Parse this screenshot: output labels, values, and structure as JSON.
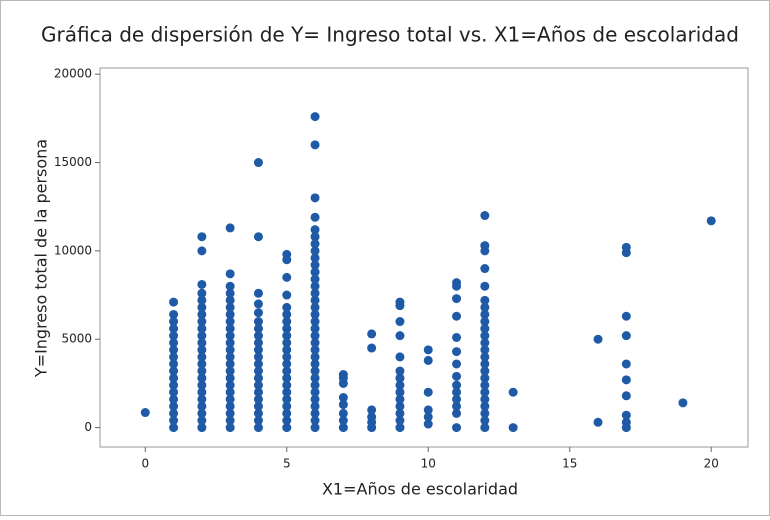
{
  "chart_data": {
    "type": "scatter",
    "title": "Gráfica de dispersión de Y= Ingreso total vs. X1=Años de escolaridad",
    "xlabel": "X1=Años de escolaridad",
    "ylabel": "Y=Ingreso total de la persona",
    "color": "#1f5aa6",
    "xlim": [
      -1.6,
      21.3
    ],
    "ylim": [
      -1100,
      20350
    ],
    "xticks": [
      0,
      5,
      10,
      15,
      20
    ],
    "yticks": [
      0,
      5000,
      10000,
      15000,
      20000
    ],
    "grid": false,
    "x": [
      0,
      1,
      1,
      1,
      1,
      1,
      1,
      1,
      1,
      1,
      1,
      1,
      1,
      1,
      1,
      1,
      1,
      1,
      1,
      2,
      2,
      2,
      2,
      2,
      2,
      2,
      2,
      2,
      2,
      2,
      2,
      2,
      2,
      2,
      2,
      2,
      2,
      2,
      2,
      2,
      2,
      2,
      3,
      3,
      3,
      3,
      3,
      3,
      3,
      3,
      3,
      3,
      3,
      3,
      3,
      3,
      3,
      3,
      3,
      3,
      3,
      3,
      3,
      3,
      3,
      4,
      4,
      4,
      4,
      4,
      4,
      4,
      4,
      4,
      4,
      4,
      4,
      4,
      4,
      4,
      4,
      4,
      4,
      4,
      4,
      4,
      5,
      5,
      5,
      5,
      5,
      5,
      5,
      5,
      5,
      5,
      5,
      5,
      5,
      5,
      5,
      5,
      5,
      5,
      5,
      5,
      5,
      5,
      6,
      6,
      6,
      6,
      6,
      6,
      6,
      6,
      6,
      6,
      6,
      6,
      6,
      6,
      6,
      6,
      6,
      6,
      6,
      6,
      6,
      6,
      6,
      6,
      6,
      6,
      6,
      6,
      6,
      6,
      6,
      6,
      6,
      7,
      7,
      7,
      7,
      7,
      7,
      7,
      7,
      8,
      8,
      8,
      8,
      8,
      8,
      9,
      9,
      9,
      9,
      9,
      9,
      9,
      9,
      9,
      9,
      9,
      9,
      9,
      9,
      10,
      10,
      10,
      10,
      10,
      10,
      11,
      11,
      11,
      11,
      11,
      11,
      11,
      11,
      11,
      11,
      11,
      11,
      11,
      11,
      12,
      12,
      12,
      12,
      12,
      12,
      12,
      12,
      12,
      12,
      12,
      12,
      12,
      12,
      12,
      12,
      12,
      12,
      12,
      12,
      12,
      12,
      12,
      12,
      13,
      13,
      16,
      16,
      17,
      17,
      17,
      17,
      17,
      17,
      17,
      17,
      17,
      17,
      19,
      20
    ],
    "values": [
      850,
      0,
      400,
      800,
      1200,
      1600,
      2000,
      2400,
      2800,
      3200,
      3600,
      4000,
      4400,
      4800,
      5200,
      5600,
      6000,
      6400,
      7100,
      0,
      400,
      800,
      1200,
      1600,
      2000,
      2400,
      2800,
      3200,
      3600,
      4000,
      4400,
      4800,
      5200,
      5600,
      6000,
      6400,
      6800,
      7200,
      7600,
      8100,
      10000,
      10800,
      0,
      400,
      800,
      1200,
      1600,
      2000,
      2400,
      2800,
      3200,
      3600,
      4000,
      4400,
      4800,
      5200,
      5600,
      6000,
      6400,
      6800,
      7200,
      7600,
      8000,
      8700,
      11300,
      0,
      400,
      800,
      1200,
      1600,
      2000,
      2400,
      2800,
      3200,
      3600,
      4000,
      4400,
      4800,
      5200,
      5600,
      6000,
      6500,
      7000,
      7600,
      10800,
      15000,
      0,
      400,
      800,
      1200,
      1600,
      2000,
      2400,
      2800,
      3200,
      3600,
      4000,
      4400,
      4800,
      5200,
      5600,
      6000,
      6400,
      6800,
      7500,
      8500,
      9500,
      9800,
      0,
      400,
      800,
      1200,
      1600,
      2000,
      2400,
      2800,
      3200,
      3600,
      4000,
      4400,
      4800,
      5200,
      5600,
      6000,
      6400,
      6800,
      7200,
      7600,
      8000,
      8400,
      8800,
      9200,
      9600,
      10000,
      10400,
      10800,
      11200,
      11900,
      13000,
      16000,
      17600,
      0,
      400,
      800,
      1300,
      1700,
      2500,
      2800,
      3000,
      0,
      300,
      600,
      1000,
      4500,
      5300,
      0,
      400,
      800,
      1200,
      1600,
      2000,
      2400,
      2800,
      3200,
      4000,
      5200,
      6000,
      6900,
      7100,
      200,
      600,
      1000,
      2000,
      3800,
      4400,
      0,
      800,
      1200,
      1600,
      2000,
      2400,
      2900,
      3600,
      4300,
      5100,
      6300,
      7300,
      8000,
      8200,
      0,
      400,
      800,
      1200,
      1600,
      2000,
      2400,
      2800,
      3200,
      3600,
      4000,
      4400,
      4800,
      5200,
      5600,
      6000,
      6400,
      6800,
      7200,
      8000,
      9000,
      10000,
      10300,
      12000,
      0,
      2000,
      300,
      5000,
      0,
      300,
      700,
      1800,
      2700,
      3600,
      5200,
      6300,
      9900,
      10200,
      1400,
      11700
    ]
  }
}
